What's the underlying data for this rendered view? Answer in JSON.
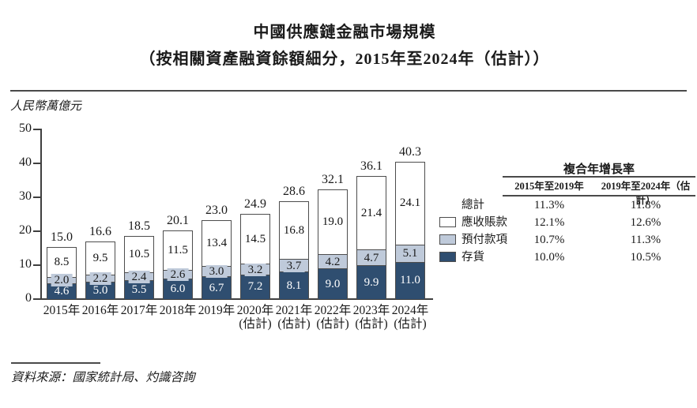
{
  "title": {
    "line1": "中國供應鏈金融市場規模",
    "line2": "（按相關資產融資餘額細分，2015年至2024年（估計））"
  },
  "unit_label": "人民幣萬億元",
  "source": "資料來源：國家統計局、灼識咨詢",
  "colors": {
    "inventory_dark_blue": "#2f4e70",
    "prepayments_light_blue": "#bfcada",
    "receivables_white": "#ffffff",
    "bar_border": "#4d4d4d",
    "rule": "#4a4a4a"
  },
  "chart_data": {
    "type": "bar",
    "stacked": true,
    "title": "中國供應鏈金融市場規模（按相關資產融資餘額細分，2015年至2024年（估計））",
    "ylabel": "人民幣萬億元",
    "ylim": [
      0,
      50
    ],
    "yticks": [
      0,
      10,
      20,
      30,
      40,
      50
    ],
    "grid": false,
    "legend_position": "right",
    "categories": [
      {
        "label": "2015年",
        "sublabel": ""
      },
      {
        "label": "2016年",
        "sublabel": ""
      },
      {
        "label": "2017年",
        "sublabel": ""
      },
      {
        "label": "2018年",
        "sublabel": ""
      },
      {
        "label": "2019年",
        "sublabel": ""
      },
      {
        "label": "2020年",
        "sublabel": "(估計)"
      },
      {
        "label": "2021年",
        "sublabel": "(估計)"
      },
      {
        "label": "2022年",
        "sublabel": "(估計)"
      },
      {
        "label": "2023年",
        "sublabel": "(估計)"
      },
      {
        "label": "2024年",
        "sublabel": "(估計)"
      }
    ],
    "series": [
      {
        "name": "存貨",
        "color": "#2f4e70",
        "label_color": "#ffffff",
        "values": [
          4.6,
          5.0,
          5.5,
          6.0,
          6.7,
          7.2,
          8.1,
          9.0,
          9.9,
          11.0
        ]
      },
      {
        "name": "預付款項",
        "color": "#bfcada",
        "label_color": "#111111",
        "values": [
          2.0,
          2.2,
          2.4,
          2.6,
          3.0,
          3.2,
          3.7,
          4.2,
          4.7,
          5.1
        ]
      },
      {
        "name": "應收賬款",
        "color": "#ffffff",
        "label_color": "#111111",
        "values": [
          8.5,
          9.5,
          10.5,
          11.5,
          13.4,
          14.5,
          16.8,
          19.0,
          21.4,
          24.1
        ]
      }
    ],
    "totals": [
      15.0,
      16.6,
      18.5,
      20.1,
      23.0,
      24.9,
      28.6,
      32.1,
      36.1,
      40.3
    ]
  },
  "cagr_table": {
    "title": "複合年增長率",
    "columns": [
      "2015年至2019年",
      "2019年至2024年（估計）"
    ],
    "rows": [
      {
        "label": "總計",
        "swatch": null,
        "values": [
          "11.3%",
          "11.8%"
        ]
      },
      {
        "label": "應收賬款",
        "swatch": "#ffffff",
        "values": [
          "12.1%",
          "12.6%"
        ]
      },
      {
        "label": "預付款項",
        "swatch": "#bfcada",
        "values": [
          "10.7%",
          "11.3%"
        ]
      },
      {
        "label": "存貨",
        "swatch": "#2f4e70",
        "values": [
          "10.0%",
          "10.5%"
        ]
      }
    ]
  }
}
